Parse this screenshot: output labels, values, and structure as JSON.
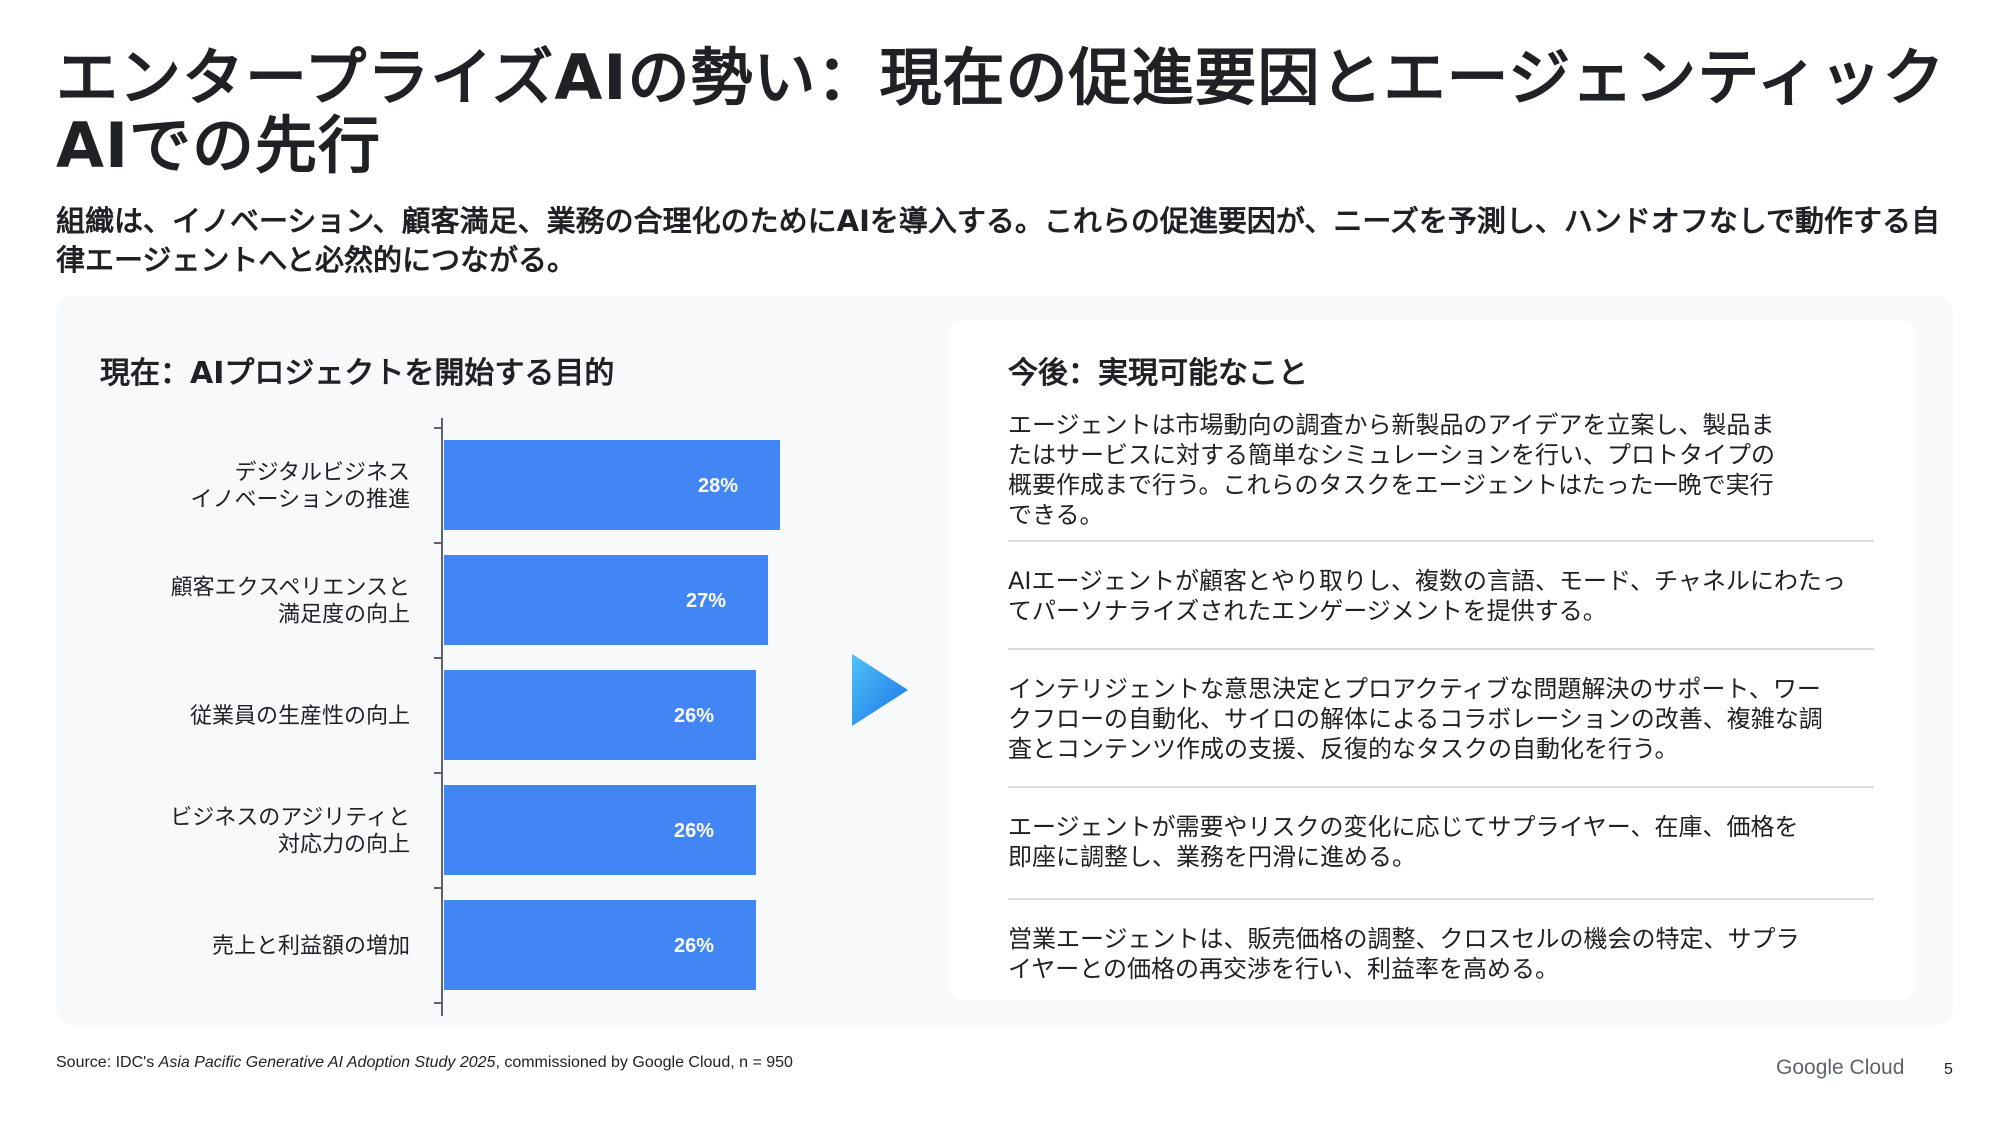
{
  "slide": {
    "title": "エンタープライズAIの勢い：現在の促進要因とエージェンティックAIでの先行",
    "subtitle": "組織は、イノベーション、顧客満足、業務の合理化のためにAIを導入する。これらの促進要因が、ニーズを予測し、ハンドオフなしで動作する自律エージェントへと必然的につながる。",
    "page_number": "5"
  },
  "left": {
    "heading": "現在：AIプロジェクトを開始する目的"
  },
  "chart_data": {
    "type": "bar",
    "orientation": "horizontal",
    "categories": [
      [
        "デジタルビジネス",
        "イノベーションの推進"
      ],
      [
        "顧客エクスペリエンスと",
        "満足度の向上"
      ],
      [
        "従業員の生産性の向上"
      ],
      [
        "ビジネスのアジリティと",
        "対応力の向上"
      ],
      [
        "売上と利益額の増加"
      ]
    ],
    "values": [
      28,
      27,
      26,
      26,
      26
    ],
    "value_labels": [
      "28%",
      "27%",
      "26%",
      "26%",
      "26%"
    ],
    "unit": "%",
    "xlim": [
      0,
      30
    ],
    "bar_color": "#4285f4",
    "label_color": "#ffffff",
    "grid": false
  },
  "right": {
    "heading": "今後：実現可能なこと",
    "items": [
      [
        "エージェントは市場動向の調査から新製品のアイデアを立案し、製品ま",
        "たはサービスに対する簡単なシミュレーションを行い、プロトタイプの",
        "概要作成まで行う。これらのタスクをエージェントはたった一晩で実行",
        "できる。"
      ],
      [
        "AIエージェントが顧客とやり取りし、複数の言語、モード、チャネルにわたっ",
        "てパーソナライズされたエンゲージメントを提供する。"
      ],
      [
        "インテリジェントな意思決定とプロアクティブな問題解決のサポート、ワー",
        "クフローの自動化、サイロの解体によるコラボレーションの改善、複雑な調",
        "査とコンテンツ作成の支援、反復的なタスクの自動化を行う。"
      ],
      [
        "エージェントが需要やリスクの変化に応じてサプライヤー、在庫、価格を",
        "即座に調整し、業務を円滑に進める。"
      ],
      [
        "営業エージェントは、販売価格の調整、クロスセルの機会の特定、サプラ",
        "イヤーとの価格の再交渉を行い、利益率を高める。"
      ]
    ]
  },
  "source": {
    "prefix": "Source: IDC's ",
    "study": "Asia Pacific Generative AI Adoption Study 2025",
    "suffix": ", commissioned by Google Cloud, n = 950"
  },
  "logo_text": "Google Cloud",
  "colors": {
    "accent": "#4285f4",
    "panel_bg": "#f8f9fa",
    "divider": "#dadce0",
    "arrow_top": "#4fc3f7",
    "arrow_bottom": "#1a73e8"
  }
}
